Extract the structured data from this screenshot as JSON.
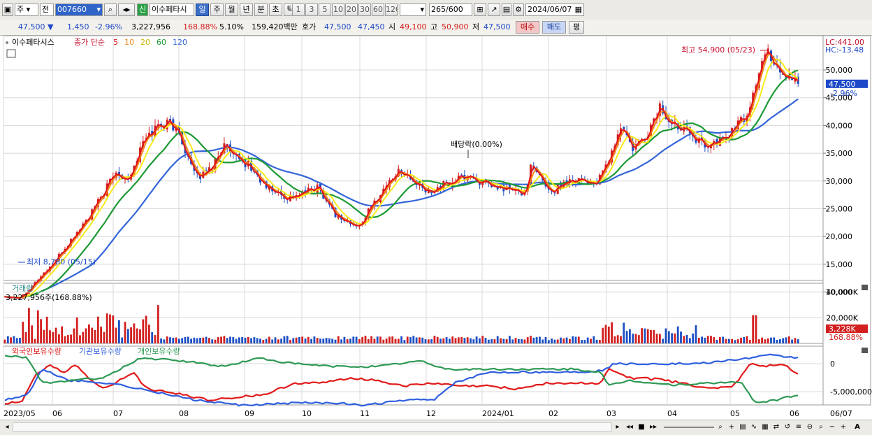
{
  "toolbar": {
    "market": "주",
    "period_sel": "전",
    "code": "007660",
    "new_badge": "신",
    "stock_name": "이수페타시",
    "tabs": [
      "일",
      "주",
      "월",
      "년",
      "분",
      "초",
      "틱"
    ],
    "active_tab": 0,
    "intervals": [
      "1",
      "3",
      "5",
      "10",
      "20",
      "30",
      "60",
      "120"
    ],
    "count": "265",
    "count_total": "/600",
    "date": "2024/06/07"
  },
  "info": {
    "price": "47,500",
    "arrow": "▼",
    "change": "1,450",
    "change_pct": "-2.96%",
    "volume": "3,227,956",
    "volume_ratio": "168.88%",
    "turnover": "5.10%",
    "amount": "159,420백만",
    "ask_label": "호가",
    "ask": "47,500",
    "bid": "47,450",
    "open_label": "시",
    "open": "49,100",
    "high_label": "고",
    "high": "50,900",
    "low_label": "저",
    "low": "47,500",
    "buy_label": "매수",
    "sell_label": "매도",
    "avg_label": "평"
  },
  "price_panel": {
    "name": "이수페타시스",
    "legend_label": "종가 단순",
    "ma_periods": [
      "5",
      "10",
      "20",
      "60",
      "120"
    ],
    "lc_label": "LC:441.00",
    "hc_label": "HC:-13.48",
    "high_annotation": "최고 54,900 (05/23)",
    "low_annotation": "최저 8,780 (05/15)",
    "dividend_annotation": "배당락(0.00%)",
    "current_price_tag": "47,500",
    "current_pct_tag": "-2.96%",
    "y_ticks": [
      "50,000",
      "45,000",
      "40,000",
      "35,000",
      "30,000",
      "25,000",
      "20,000",
      "15,000",
      "10,000"
    ]
  },
  "volume_panel": {
    "title": "거래량",
    "info": "3,227,956주(168.88%)",
    "y_ticks": [
      "40,000K",
      "20,000K"
    ],
    "tag_volume": "3,228K",
    "tag_pct": "168.88%"
  },
  "holdings_panel": {
    "legend": [
      "외국인보유수량",
      "기관보유수량",
      "개인보유수량"
    ],
    "y_ticks": [
      "0",
      "-5,000,000"
    ]
  },
  "x_ticks": [
    "2023/05",
    "06",
    "07",
    "08",
    "09",
    "10",
    "11",
    "12",
    "2024/01",
    "02",
    "03",
    "04",
    "05",
    "06",
    "06/07"
  ],
  "colors": {
    "up": "#d31f1f",
    "down": "#1c4fc4",
    "ma5": "#e0141a",
    "ma10": "#f08a18",
    "ma20": "#f7ec1a",
    "ma60": "#1c9a34",
    "ma120": "#3465d8",
    "foreign": "#e21a1a",
    "institution": "#2f5fe0",
    "individual": "#2e9a55"
  }
}
